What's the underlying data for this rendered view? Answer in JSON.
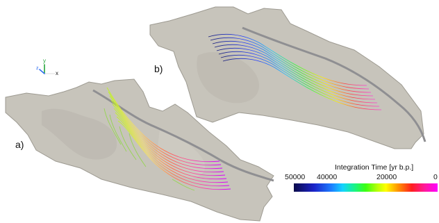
{
  "panels": {
    "a_label": "a)",
    "b_label": "b)"
  },
  "colorbar": {
    "title": "Integration Time [yr b.p.]",
    "ticks": [
      "50000",
      "40000",
      "20000",
      "0"
    ],
    "min": 0,
    "max": 50000
  },
  "colors": {
    "terrain": "#c7c4bb",
    "terrain_edge": "#9d9a91",
    "path_line": "#8f8f92"
  }
}
